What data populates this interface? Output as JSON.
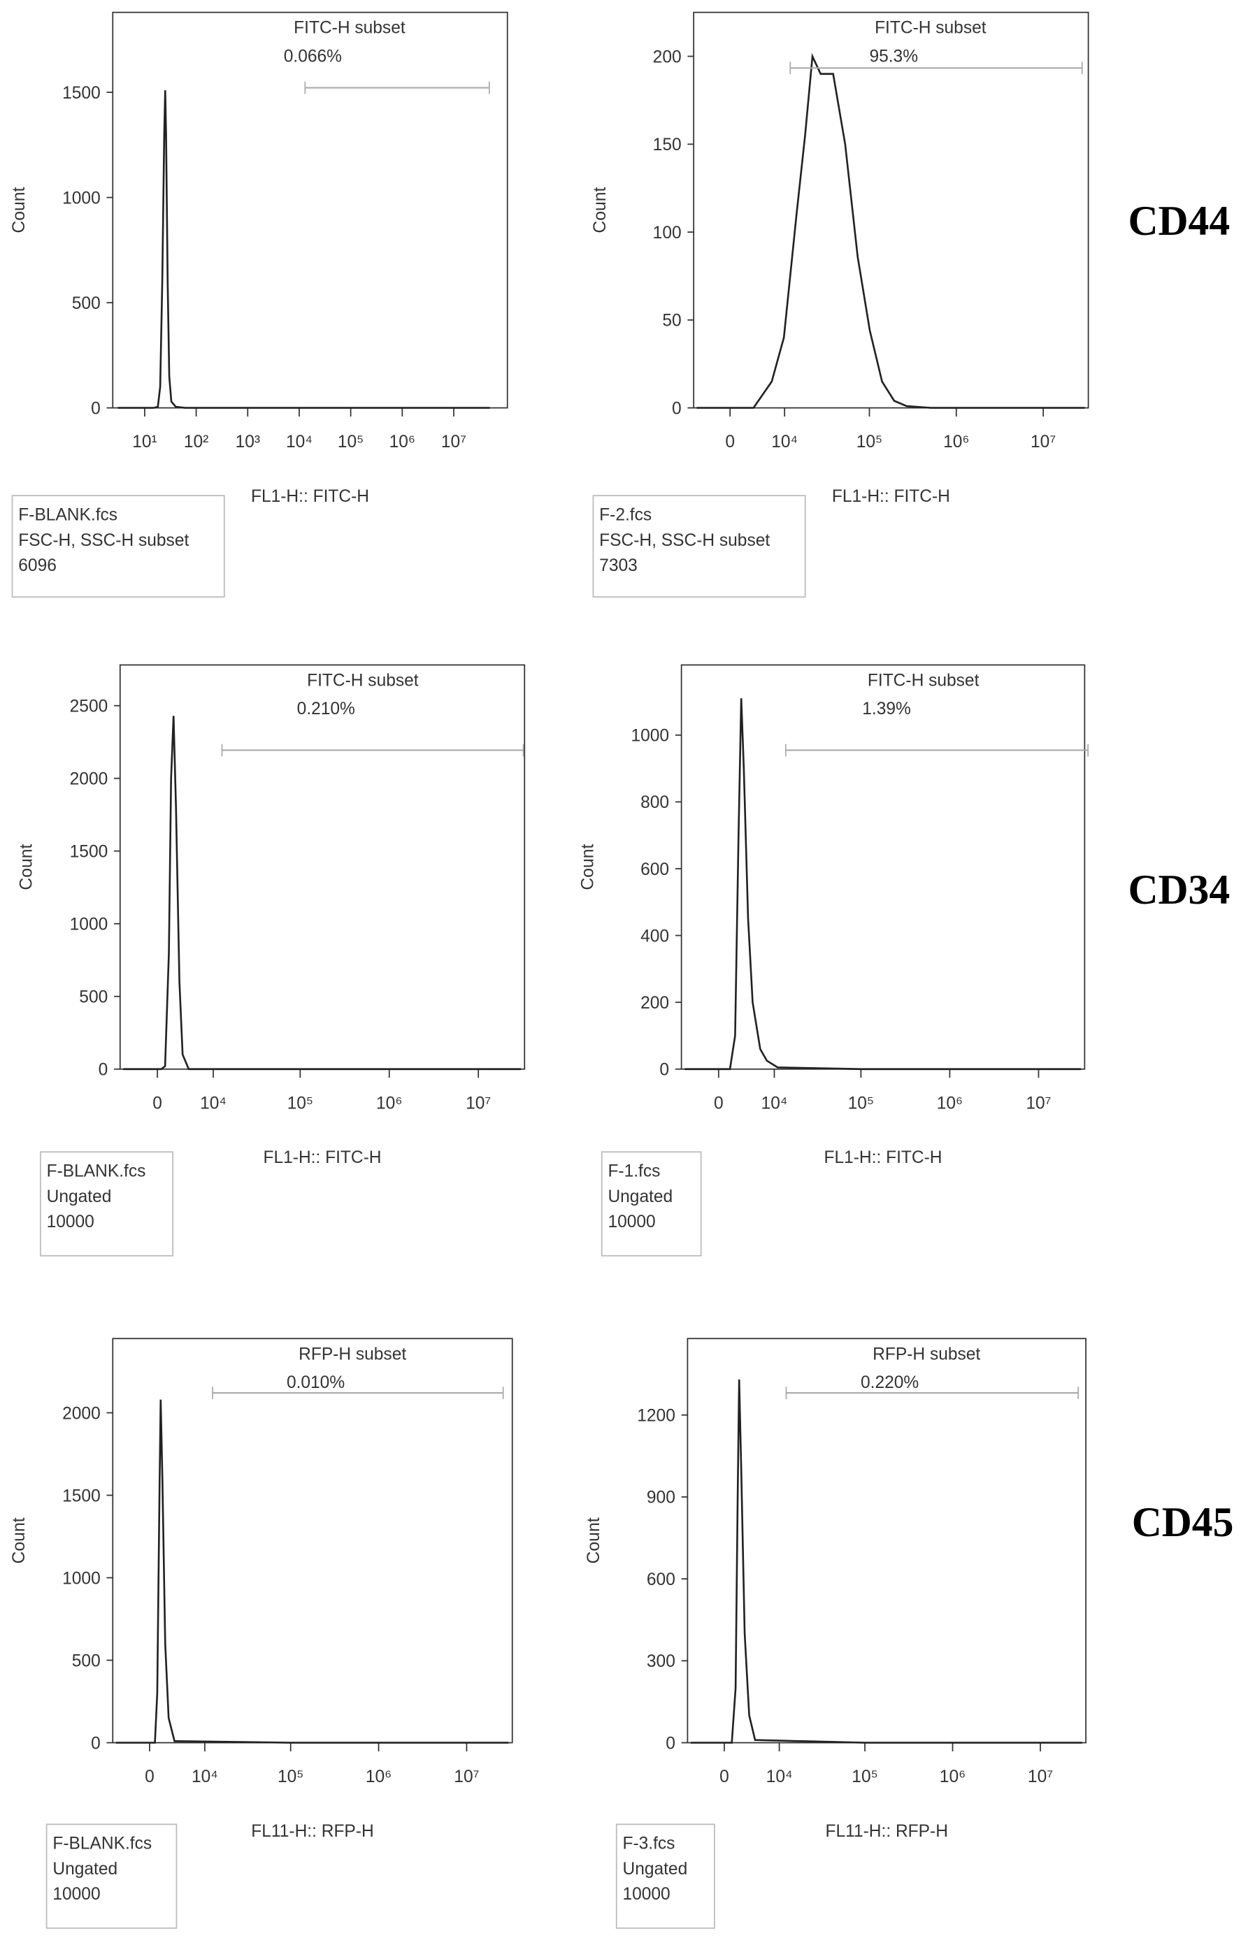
{
  "row_labels": [
    "CD44",
    "CD34",
    "CD45"
  ],
  "chart_data": [
    {
      "type": "line",
      "xscale": "log",
      "xlabel": "FL1-H:: FITC-H",
      "ylabel": "Count",
      "gate_name": "FITC-H subset",
      "gate_percent": "0.066%",
      "gate": [
        13000,
        49000000
      ],
      "info": {
        "file": "F-BLANK.fcs",
        "population": "FSC-H, SSC-H subset",
        "events": 6096
      },
      "xlim": [
        2.4,
        110000000
      ],
      "ylim": [
        0,
        1880
      ],
      "xticks": [
        {
          "value": 10,
          "label": "10¹"
        },
        {
          "value": 100,
          "label": "10²"
        },
        {
          "value": 1000,
          "label": "10³"
        },
        {
          "value": 10000,
          "label": "10⁴"
        },
        {
          "value": 100000,
          "label": "10⁵"
        },
        {
          "value": 1000000,
          "label": "10⁶"
        },
        {
          "value": 10000000,
          "label": "10⁷"
        }
      ],
      "yticks": [
        0,
        500,
        1000,
        1500
      ],
      "color": "#222222",
      "x": [
        3,
        15,
        18,
        20,
        22,
        24,
        25,
        26,
        28,
        30,
        33,
        40,
        60,
        100,
        1000,
        100000,
        50000000
      ],
      "values": [
        0,
        0,
        5,
        100,
        600,
        1300,
        1510,
        1300,
        600,
        150,
        30,
        5,
        0,
        0,
        0,
        0,
        0
      ]
    },
    {
      "type": "line",
      "xscale": "biexponential",
      "xlabel": "FL1-H:: FITC-H",
      "ylabel": "Count",
      "gate_name": "FITC-H subset",
      "gate_percent": "95.3%",
      "gate": [
        11800,
        28000000
      ],
      "info": {
        "file": "F-2.fcs",
        "population": "FSC-H, SSC-H subset",
        "events": 7303
      },
      "xlim": [
        -5600,
        33000000
      ],
      "ylim": [
        0,
        225
      ],
      "xticks": [
        0,
        {
          "value": 10000,
          "label": "10⁴"
        },
        {
          "value": 100000,
          "label": "10⁵"
        },
        {
          "value": 1000000,
          "label": "10⁶"
        },
        {
          "value": 10000000,
          "label": "10⁷"
        }
      ],
      "yticks": [
        0,
        50,
        100,
        150,
        200
      ],
      "color": "#222222",
      "x": [
        -5000,
        650,
        3300,
        6700,
        9800,
        14100,
        17900,
        21900,
        27300,
        38200,
        52600,
        73300,
        101000,
        140000,
        193000,
        269000,
        511000,
        30000000
      ],
      "values": [
        0,
        0,
        0,
        15,
        40,
        110,
        155,
        200,
        190,
        190,
        150,
        86,
        44,
        15,
        4,
        1,
        0,
        0
      ]
    },
    {
      "type": "line",
      "xscale": "biexponential",
      "xlabel": "FL1-H:: FITC-H",
      "ylabel": "Count",
      "gate_name": "FITC-H subset",
      "gate_percent": "0.210%",
      "gate": [
        12800,
        32000000
      ],
      "info": {
        "file": "F-BLANK.fcs",
        "population": "Ungated",
        "events": 10000
      },
      "xlim": [
        -5600,
        33000000
      ],
      "ylim": [
        0,
        2780
      ],
      "xticks": [
        0,
        {
          "value": 10000,
          "label": "10⁴"
        },
        {
          "value": 100000,
          "label": "10⁵"
        },
        {
          "value": 1000000,
          "label": "10⁶"
        },
        {
          "value": 10000000,
          "label": "10⁷"
        }
      ],
      "yticks": [
        0,
        500,
        1000,
        1500,
        2000,
        2500
      ],
      "color": "#222222",
      "x": [
        -5000,
        -500,
        500,
        1000,
        1500,
        1800,
        2140,
        2500,
        3000,
        3500,
        4500,
        100000,
        30000000
      ],
      "values": [
        0,
        0,
        0,
        20,
        800,
        2000,
        2430,
        1800,
        600,
        100,
        0,
        0,
        0
      ]
    },
    {
      "type": "line",
      "xscale": "biexponential",
      "xlabel": "FL1-H:: FITC-H",
      "ylabel": "Count",
      "gate_name": "FITC-H subset",
      "gate_percent": "1.39%",
      "gate": [
        13800,
        36000000
      ],
      "info": {
        "file": "F-1.fcs",
        "population": "Ungated",
        "events": 10000
      },
      "xlim": [
        -5600,
        33000000
      ],
      "ylim": [
        0,
        1210
      ],
      "xticks": [
        0,
        {
          "value": 10000,
          "label": "10⁴"
        },
        {
          "value": 100000,
          "label": "10⁵"
        },
        {
          "value": 1000000,
          "label": "10⁶"
        },
        {
          "value": 10000000,
          "label": "10⁷"
        }
      ],
      "yticks": [
        0,
        200,
        400,
        600,
        800,
        1000
      ],
      "color": "#222222",
      "x": [
        -5000,
        0,
        1500,
        2200,
        2700,
        3100,
        3500,
        4200,
        5000,
        6500,
        8000,
        11000,
        100000,
        30000000
      ],
      "values": [
        0,
        0,
        0,
        100,
        700,
        1110,
        900,
        450,
        200,
        60,
        25,
        5,
        0,
        0
      ]
    },
    {
      "type": "line",
      "xscale": "biexponential",
      "xlabel": "FL11-H:: RFP-H",
      "ylabel": "Count",
      "gate_name": "RFP-H subset",
      "gate_percent": "0.010%",
      "gate": [
        12500,
        26000000
      ],
      "info": {
        "file": "F-BLANK.fcs",
        "population": "Ungated",
        "events": 10000
      },
      "xlim": [
        -5600,
        33000000
      ],
      "ylim": [
        0,
        2450
      ],
      "xticks": [
        0,
        {
          "value": 10000,
          "label": "10⁴"
        },
        {
          "value": 100000,
          "label": "10⁵"
        },
        {
          "value": 1000000,
          "label": "10⁶"
        },
        {
          "value": 10000000,
          "label": "10⁷"
        }
      ],
      "yticks": [
        0,
        500,
        1000,
        1500,
        2000
      ],
      "color": "#222222",
      "x": [
        -5000,
        0,
        700,
        1000,
        1300,
        1470,
        1700,
        2100,
        2600,
        3500,
        100000,
        30000000
      ],
      "values": [
        0,
        0,
        0,
        300,
        1500,
        2080,
        1600,
        600,
        150,
        10,
        0,
        0
      ]
    },
    {
      "type": "line",
      "xscale": "biexponential",
      "xlabel": "FL11-H:: RFP-H",
      "ylabel": "Count",
      "gate_name": "RFP-H subset",
      "gate_percent": "0.220%",
      "gate": [
        12200,
        27000000
      ],
      "info": {
        "file": "F-3.fcs",
        "population": "Ungated",
        "events": 10000
      },
      "xlim": [
        -5600,
        33000000
      ],
      "ylim": [
        0,
        1480
      ],
      "xticks": [
        0,
        {
          "value": 10000,
          "label": "10⁴"
        },
        {
          "value": 100000,
          "label": "10⁵"
        },
        {
          "value": 1000000,
          "label": "10⁶"
        },
        {
          "value": 10000000,
          "label": "10⁷"
        }
      ],
      "yticks": [
        0,
        300,
        600,
        900,
        1200
      ],
      "color": "#222222",
      "x": [
        -5000,
        0,
        1000,
        1500,
        1800,
        2000,
        2300,
        2800,
        3500,
        4500,
        100000,
        30000000
      ],
      "values": [
        0,
        0,
        0,
        200,
        900,
        1330,
        1000,
        400,
        100,
        10,
        0,
        0
      ]
    }
  ]
}
